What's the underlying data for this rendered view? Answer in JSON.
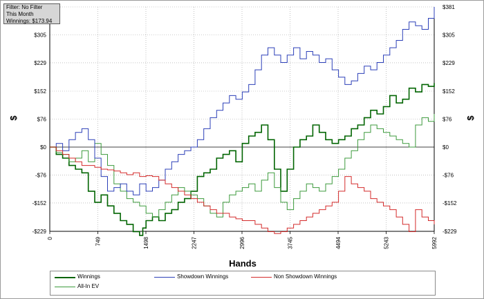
{
  "info_box": {
    "filter": "Filter: No Filter",
    "period": "This Month",
    "winnings": "Winnings: $173.94"
  },
  "chart_data": {
    "type": "line",
    "xlabel": "Hands",
    "ylabel": "$",
    "y2label": "$",
    "xlim": [
      0,
      5992
    ],
    "ylim": [
      -229,
      381
    ],
    "x_ticks": [
      0,
      749,
      1498,
      2247,
      2996,
      3745,
      4494,
      5243,
      5992
    ],
    "y_ticks": [
      -229,
      -152,
      -76,
      0,
      76,
      152,
      229,
      305,
      381
    ],
    "y_tick_labels": [
      "-$229",
      "-$152",
      "-$76",
      "$0",
      "$76",
      "$152",
      "$229",
      "$305",
      "$381"
    ],
    "grid": true,
    "legend_position": "bottom",
    "series": [
      {
        "name": "Winnings",
        "color": "#006400",
        "width": 1.6,
        "x": [
          0,
          100,
          200,
          300,
          400,
          500,
          600,
          700,
          800,
          900,
          1000,
          1100,
          1200,
          1300,
          1400,
          1450,
          1500,
          1600,
          1700,
          1800,
          1900,
          2000,
          2100,
          2200,
          2300,
          2400,
          2500,
          2600,
          2700,
          2800,
          2900,
          3000,
          3100,
          3200,
          3300,
          3400,
          3500,
          3600,
          3700,
          3800,
          3900,
          4000,
          4100,
          4200,
          4300,
          4400,
          4500,
          4600,
          4700,
          4800,
          4900,
          5000,
          5100,
          5200,
          5300,
          5400,
          5500,
          5600,
          5700,
          5800,
          5900,
          5992
        ],
        "y": [
          0,
          -20,
          -30,
          -50,
          -60,
          -70,
          -120,
          -150,
          -130,
          -160,
          -180,
          -200,
          -210,
          -230,
          -240,
          -220,
          -200,
          -190,
          -200,
          -180,
          -170,
          -150,
          -140,
          -120,
          -80,
          -70,
          -60,
          -30,
          -20,
          -10,
          -40,
          10,
          30,
          40,
          60,
          20,
          -60,
          -120,
          -60,
          0,
          20,
          30,
          60,
          40,
          20,
          10,
          20,
          30,
          50,
          60,
          80,
          100,
          90,
          110,
          140,
          120,
          130,
          160,
          150,
          170,
          165,
          174
        ]
      },
      {
        "name": "All-In EV",
        "color": "#3c9a3c",
        "width": 1,
        "x": [
          0,
          100,
          200,
          300,
          400,
          500,
          600,
          700,
          800,
          900,
          1000,
          1100,
          1200,
          1300,
          1400,
          1500,
          1600,
          1700,
          1800,
          1900,
          2000,
          2100,
          2200,
          2300,
          2400,
          2500,
          2600,
          2700,
          2800,
          2900,
          3000,
          3100,
          3200,
          3300,
          3400,
          3500,
          3600,
          3700,
          3800,
          3900,
          4000,
          4100,
          4200,
          4300,
          4400,
          4500,
          4600,
          4700,
          4800,
          4900,
          5000,
          5100,
          5200,
          5300,
          5400,
          5500,
          5600,
          5700,
          5800,
          5900,
          5992
        ],
        "y": [
          0,
          -15,
          -20,
          -40,
          -30,
          -10,
          -40,
          10,
          -20,
          -50,
          -100,
          -120,
          -140,
          -150,
          -160,
          -180,
          -190,
          -170,
          -150,
          -130,
          -110,
          -120,
          -130,
          -140,
          -160,
          -180,
          -190,
          -150,
          -130,
          -120,
          -110,
          -100,
          -120,
          -90,
          -70,
          -110,
          -150,
          -170,
          -140,
          -120,
          -100,
          -110,
          -120,
          -100,
          -80,
          -60,
          -30,
          -10,
          20,
          40,
          60,
          50,
          40,
          30,
          20,
          10,
          0,
          60,
          80,
          70,
          90
        ]
      },
      {
        "name": "Showdown Winnings",
        "color": "#2b3fb8",
        "width": 1,
        "x": [
          0,
          100,
          200,
          300,
          400,
          500,
          600,
          700,
          800,
          900,
          1000,
          1100,
          1200,
          1300,
          1400,
          1500,
          1600,
          1700,
          1800,
          1900,
          2000,
          2100,
          2200,
          2300,
          2400,
          2500,
          2600,
          2700,
          2800,
          2900,
          3000,
          3100,
          3200,
          3300,
          3400,
          3500,
          3600,
          3700,
          3800,
          3900,
          4000,
          4100,
          4200,
          4300,
          4400,
          4500,
          4600,
          4700,
          4800,
          4900,
          5000,
          5100,
          5200,
          5300,
          5400,
          5500,
          5600,
          5700,
          5800,
          5900,
          5992
        ],
        "y": [
          0,
          10,
          -10,
          20,
          40,
          50,
          20,
          -30,
          -80,
          -120,
          -110,
          -100,
          -120,
          -130,
          -100,
          -120,
          -110,
          -90,
          -60,
          -40,
          -20,
          -10,
          0,
          20,
          50,
          80,
          100,
          120,
          140,
          130,
          150,
          170,
          210,
          250,
          270,
          250,
          230,
          250,
          270,
          240,
          260,
          250,
          230,
          240,
          210,
          190,
          170,
          180,
          200,
          220,
          210,
          230,
          250,
          270,
          290,
          320,
          340,
          330,
          320,
          350,
          381
        ]
      },
      {
        "name": "Non Showdown Winnings",
        "color": "#d42a2a",
        "width": 1,
        "x": [
          0,
          100,
          200,
          300,
          400,
          500,
          600,
          700,
          800,
          900,
          1000,
          1100,
          1200,
          1300,
          1400,
          1500,
          1600,
          1700,
          1800,
          1900,
          2000,
          2100,
          2200,
          2300,
          2400,
          2500,
          2600,
          2700,
          2800,
          2900,
          3000,
          3100,
          3200,
          3300,
          3400,
          3500,
          3600,
          3700,
          3800,
          3900,
          4000,
          4100,
          4200,
          4300,
          4400,
          4500,
          4600,
          4700,
          4800,
          4900,
          5000,
          5100,
          5200,
          5300,
          5400,
          5500,
          5600,
          5700,
          5800,
          5900,
          5992
        ],
        "y": [
          0,
          -10,
          -20,
          -30,
          -40,
          -50,
          -50,
          -55,
          -60,
          -62,
          -65,
          -70,
          -75,
          -70,
          -80,
          -78,
          -80,
          -90,
          -100,
          -110,
          -120,
          -130,
          -140,
          -150,
          -160,
          -170,
          -180,
          -180,
          -190,
          -195,
          -200,
          -200,
          -210,
          -220,
          -230,
          -235,
          -230,
          -220,
          -210,
          -200,
          -190,
          -180,
          -170,
          -160,
          -150,
          -120,
          -80,
          -100,
          -110,
          -120,
          -140,
          -150,
          -160,
          -170,
          -190,
          -210,
          -230,
          -170,
          -190,
          -200,
          -210
        ]
      }
    ]
  },
  "legend": {
    "items": [
      "Winnings",
      "Showdown Winnings",
      "Non Showdown Winnings",
      "All-In EV"
    ]
  }
}
